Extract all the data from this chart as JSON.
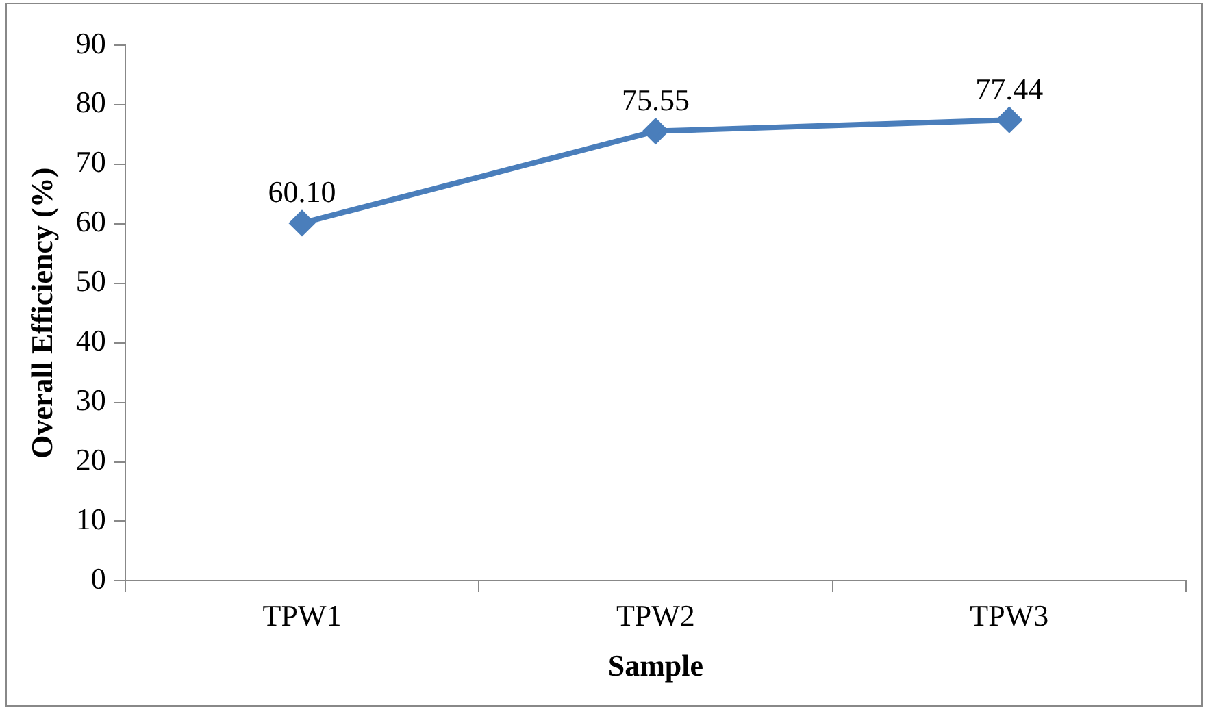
{
  "chart_data": {
    "type": "line",
    "xlabel": "Sample",
    "ylabel": "Overall Efficiency (%)",
    "categories": [
      "TPW1",
      "TPW2",
      "TPW3"
    ],
    "series": [
      {
        "color": "#4a7ebb",
        "values": [
          60.1,
          75.55,
          77.44
        ],
        "value_labels": [
          "60.10",
          "75.55",
          "77.44"
        ]
      }
    ],
    "ylim": [
      0,
      90
    ],
    "yticks": [
      0,
      10,
      20,
      30,
      40,
      50,
      60,
      70,
      80,
      90
    ],
    "grid": false,
    "legend": false,
    "marker": "diamond",
    "line_style": "solid"
  }
}
